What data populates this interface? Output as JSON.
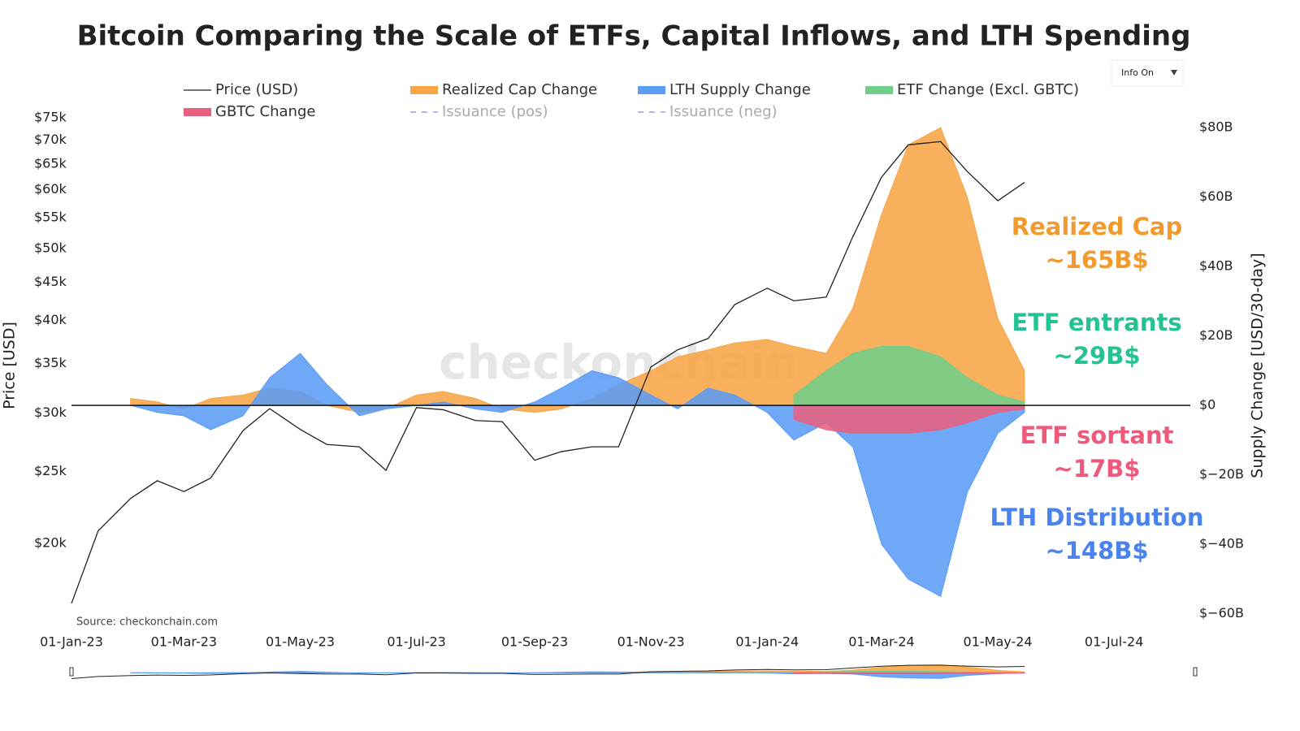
{
  "chart_data": {
    "type": "line_area",
    "title": "Bitcoin Comparing the Scale of ETFs, Capital Inflows, and LTH Spending",
    "y_label": "Price [USD]",
    "y2_label": "Supply Change [USD/30-day]",
    "source": "Source: checkonchain.com",
    "watermark": "checkonchain",
    "dropdown": "Info On",
    "log_y": true,
    "xlim": [
      "2023-01-01",
      "2024-08-10"
    ],
    "xticks": [
      {
        "value": "2023-01-01",
        "label": "01-Jan-23"
      },
      {
        "value": "2023-03-01",
        "label": "01-Mar-23"
      },
      {
        "value": "2023-05-01",
        "label": "01-May-23"
      },
      {
        "value": "2023-07-01",
        "label": "01-Jul-23"
      },
      {
        "value": "2023-09-01",
        "label": "01-Sep-23"
      },
      {
        "value": "2023-11-01",
        "label": "01-Nov-23"
      },
      {
        "value": "2024-01-01",
        "label": "01-Jan-24"
      },
      {
        "value": "2024-03-01",
        "label": "01-Mar-24"
      },
      {
        "value": "2024-05-01",
        "label": "01-May-24"
      },
      {
        "value": "2024-07-01",
        "label": "01-Jul-24"
      }
    ],
    "ylim": [
      15900,
      76000
    ],
    "yticks": [
      {
        "value": 20000,
        "label": "$20k"
      },
      {
        "value": 25000,
        "label": "$25k"
      },
      {
        "value": 30000,
        "label": "$30k"
      },
      {
        "value": 35000,
        "label": "$35k"
      },
      {
        "value": 40000,
        "label": "$40k"
      },
      {
        "value": 45000,
        "label": "$45k"
      },
      {
        "value": 50000,
        "label": "$50k"
      },
      {
        "value": 55000,
        "label": "$55k"
      },
      {
        "value": 60000,
        "label": "$60k"
      },
      {
        "value": 65000,
        "label": "$65k"
      },
      {
        "value": 70000,
        "label": "$70k"
      },
      {
        "value": 75000,
        "label": "$75k"
      }
    ],
    "y2lim": [
      -61,
      84
    ],
    "y2ticks": [
      {
        "value": 80,
        "label": "$80B"
      },
      {
        "value": 60,
        "label": "$60B"
      },
      {
        "value": 40,
        "label": "$40B"
      },
      {
        "value": 20,
        "label": "$20B"
      },
      {
        "value": 0,
        "label": "$0"
      },
      {
        "value": -20,
        "label": "$−20B"
      },
      {
        "value": -40,
        "label": "$−40B"
      },
      {
        "value": -60,
        "label": "$−60B"
      }
    ],
    "x": [
      "2023-01-01",
      "2023-01-15",
      "2023-02-01",
      "2023-02-15",
      "2023-03-01",
      "2023-03-15",
      "2023-04-01",
      "2023-04-15",
      "2023-05-01",
      "2023-05-15",
      "2023-06-01",
      "2023-06-15",
      "2023-07-01",
      "2023-07-15",
      "2023-08-01",
      "2023-08-15",
      "2023-09-01",
      "2023-09-15",
      "2023-10-01",
      "2023-10-15",
      "2023-11-01",
      "2023-11-15",
      "2023-12-01",
      "2023-12-15",
      "2024-01-01",
      "2024-01-15",
      "2024-02-01",
      "2024-02-15",
      "2024-03-01",
      "2024-03-15",
      "2024-04-01",
      "2024-04-15",
      "2024-05-01",
      "2024-05-15"
    ],
    "series": [
      {
        "name": "Price (USD)",
        "kind": "line",
        "color": "#222222",
        "axis": "y",
        "values": [
          16600,
          20800,
          23000,
          24300,
          23500,
          24500,
          28400,
          30400,
          28500,
          27200,
          27000,
          25100,
          30500,
          30300,
          29300,
          29200,
          25900,
          26600,
          27000,
          27000,
          34600,
          36500,
          37800,
          42000,
          44200,
          42500,
          43000,
          51900,
          62400,
          69000,
          69700,
          63500,
          58000,
          61400
        ]
      },
      {
        "name": "Realized Cap Change",
        "kind": "area",
        "color": "#f7a545",
        "axis": "y2",
        "values": [
          null,
          null,
          2,
          1,
          -1,
          2,
          3,
          5,
          4,
          0,
          -2,
          -1,
          3,
          4,
          2,
          -1,
          -2,
          -1,
          2,
          6,
          10,
          14,
          16,
          18,
          19,
          17,
          15,
          28,
          55,
          75,
          80,
          60,
          25,
          10
        ]
      },
      {
        "name": "LTH Supply Change",
        "kind": "area",
        "color": "#5b9cf5",
        "axis": "y2",
        "values": [
          null,
          null,
          0,
          -2,
          -3,
          -7,
          -3,
          8,
          15,
          6,
          -3,
          -1,
          0,
          1,
          -1,
          -2,
          1,
          5,
          10,
          8,
          3,
          -1,
          5,
          3,
          -2,
          -10,
          -5,
          -12,
          -40,
          -50,
          -55,
          -25,
          -8,
          -2
        ]
      },
      {
        "name": "ETF Change (Excl. GBTC)",
        "kind": "area",
        "color": "#6fce8a",
        "axis": "y2",
        "values": [
          null,
          null,
          null,
          null,
          null,
          null,
          null,
          null,
          null,
          null,
          null,
          null,
          null,
          null,
          null,
          null,
          null,
          null,
          null,
          null,
          null,
          null,
          null,
          null,
          null,
          3,
          10,
          15,
          17,
          17,
          14,
          8,
          3,
          1
        ]
      },
      {
        "name": "GBTC Change",
        "kind": "area",
        "color": "#e8607f",
        "axis": "y2",
        "values": [
          null,
          null,
          null,
          null,
          null,
          null,
          null,
          null,
          null,
          null,
          null,
          null,
          null,
          null,
          null,
          null,
          null,
          null,
          null,
          null,
          null,
          null,
          null,
          null,
          null,
          -4,
          -7,
          -8,
          -8,
          -8,
          -7,
          -5,
          -2,
          -1
        ]
      },
      {
        "name": "Issuance (pos)",
        "kind": "dash",
        "color": "#b8b0f0",
        "axis": "y2",
        "visible": false
      },
      {
        "name": "Issuance (neg)",
        "kind": "dash",
        "color": "#b8b0f0",
        "axis": "y2",
        "visible": false
      }
    ],
    "annotations": [
      {
        "lines": [
          "Realized Cap",
          "~165B$"
        ],
        "color": "#f39a2e"
      },
      {
        "lines": [
          "ETF entrants",
          "~29B$"
        ],
        "color": "#25c393"
      },
      {
        "lines": [
          "ETF sortant",
          "~17B$"
        ],
        "color": "#ee5a7c"
      },
      {
        "lines": [
          "LTH Distribution",
          "~148B$"
        ],
        "color": "#4a82ee"
      }
    ]
  }
}
